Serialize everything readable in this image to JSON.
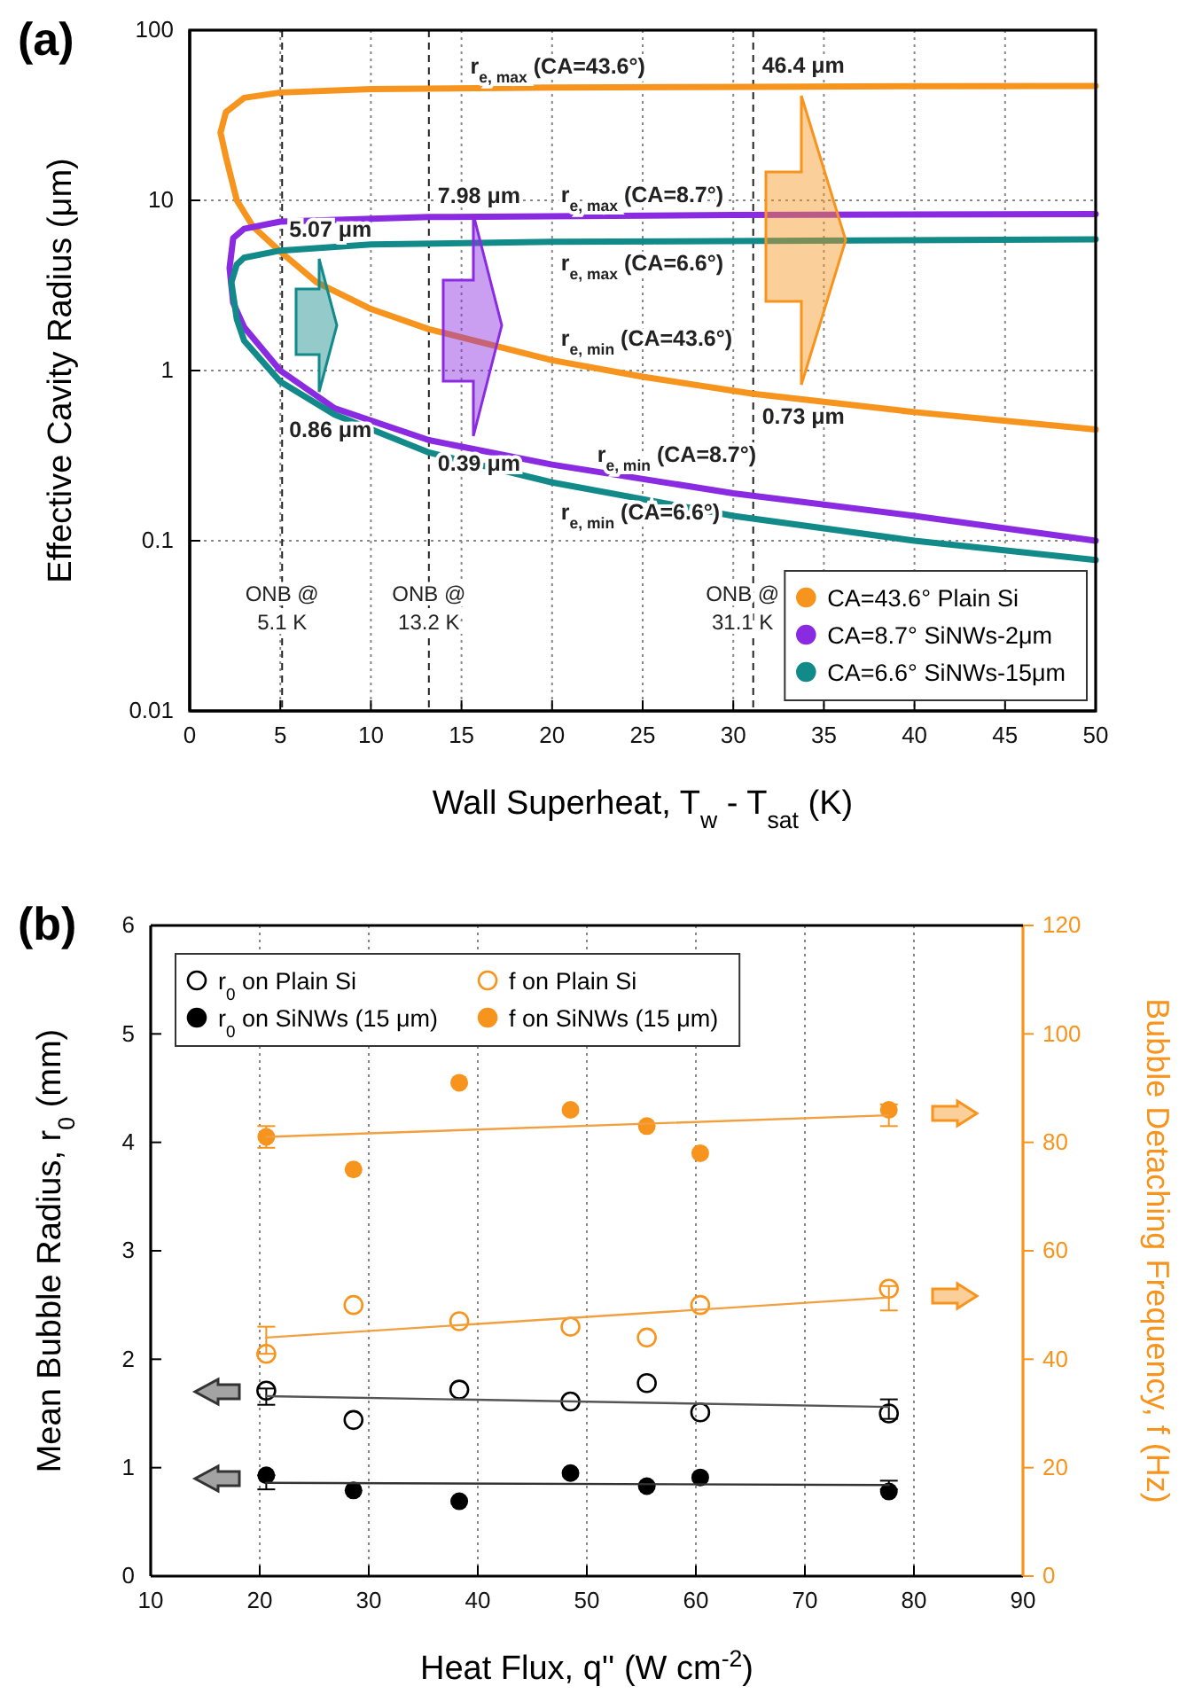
{
  "chart_data": [
    {
      "type": "line",
      "title": "(a)",
      "xlabel": "Wall Superheat, T$_{w}$ - T$_{sat}$ (K)",
      "ylabel": "Effective Cavity Radius (μm)",
      "log": "y",
      "xlim": [
        0,
        50
      ],
      "xticks": [
        0,
        5,
        10,
        15,
        20,
        25,
        30,
        35,
        40,
        45,
        50
      ],
      "ylim": [
        0.01,
        100
      ],
      "yticks": [
        0.01,
        0.1,
        1,
        10,
        100
      ],
      "grid": true,
      "legend": "bottom right",
      "marker": "none",
      "line_style": "solid",
      "series": [
        {
          "name": "CA=43.6° Plain Si",
          "color": "#f7941d",
          "x": [
            50,
            40,
            31.1,
            20,
            10,
            5,
            3,
            2,
            1.7,
            2,
            2.6,
            3.5,
            5,
            7,
            10,
            13.2,
            20,
            25,
            31.1,
            40,
            50
          ],
          "values": [
            47,
            46.8,
            46.4,
            46,
            45,
            43,
            40,
            33,
            25,
            18,
            10,
            7,
            5,
            3.3,
            2.3,
            1.75,
            1.15,
            0.92,
            0.73,
            0.57,
            0.45
          ]
        },
        {
          "name": "CA=8.7° SiNWs-2μm",
          "color": "#8a2be2",
          "x": [
            50,
            30,
            13.2,
            5,
            3,
            2.4,
            2.2,
            2.4,
            3,
            5,
            8,
            13.2,
            20,
            30,
            40,
            50
          ],
          "values": [
            8.3,
            8.2,
            7.98,
            7.5,
            6.8,
            6,
            4,
            2.5,
            1.8,
            1.0,
            0.6,
            0.39,
            0.28,
            0.19,
            0.14,
            0.1
          ]
        },
        {
          "name": "CA=6.6° SiNWs-15μm",
          "color": "#138a8a",
          "x": [
            50,
            20,
            10,
            5,
            3,
            2.6,
            2.3,
            2.6,
            3,
            5,
            8,
            13.2,
            20,
            30,
            40,
            50
          ],
          "values": [
            5.9,
            5.7,
            5.5,
            5.07,
            4.6,
            4.2,
            3.3,
            2,
            1.5,
            0.86,
            0.55,
            0.33,
            0.22,
            0.14,
            0.1,
            0.077
          ]
        }
      ],
      "ref_lines": [
        {
          "axis": "x",
          "value": 5.1,
          "label": "ONB @\n5.1 K",
          "line_style": "dashed",
          "color": "#222222"
        },
        {
          "axis": "x",
          "value": 13.2,
          "label": "ONB @\n13.2 K",
          "line_style": "dashed",
          "color": "#222222"
        },
        {
          "axis": "x",
          "value": 31.1,
          "label": "ONB @\n31.1 K",
          "line_style": "dashed",
          "color": "#222222"
        }
      ],
      "annotations": [
        {
          "text": "r$_{e, max}$ (CA=43.6°)",
          "x": 15,
          "y": 46
        },
        {
          "text": "r$_{e, max}$ (CA=8.7°)",
          "x": 20,
          "y": 8.1
        },
        {
          "text": "r$_{e, max}$ (CA=6.6°)",
          "x": 20,
          "y": 5.8
        },
        {
          "text": "r$_{e, min}$ (CA=43.6°)",
          "x": 20,
          "y": 1.15
        },
        {
          "text": "r$_{e, min}$ (CA=8.7°)",
          "x": 22,
          "y": 0.24
        },
        {
          "text": "r$_{e, min}$ (CA=6.6°)",
          "x": 20,
          "y": 0.2
        },
        {
          "text": "46.4 μm",
          "x": 31.1,
          "y": 46.4
        },
        {
          "text": "7.98 μm",
          "x": 13.2,
          "y": 7.98
        },
        {
          "text": "5.07 μm",
          "x": 5,
          "y": 5.07
        },
        {
          "text": "0.86 μm",
          "x": 5,
          "y": 0.86
        },
        {
          "text": "0.39 μm",
          "x": 13.2,
          "y": 0.39
        },
        {
          "text": "0.73 μm",
          "x": 31.1,
          "y": 0.73
        }
      ]
    },
    {
      "type": "scatter",
      "title": "(b)",
      "xlabel": "Heat Flux, q'' (W cm$^{-2}$)",
      "ylabel": "Mean Bubble Radius, r$_{0}$ (mm)",
      "y2label": "Bubble Detaching Frequency, f (Hz)",
      "xlim": [
        10,
        90
      ],
      "xticks": [
        10,
        20,
        30,
        40,
        50,
        60,
        70,
        80,
        90
      ],
      "ylim": [
        0,
        6
      ],
      "yticks": [
        0,
        1,
        2,
        3,
        4,
        5,
        6
      ],
      "y2lim": [
        0,
        120
      ],
      "y2ticks": [
        0,
        20,
        40,
        60,
        80,
        100,
        120
      ],
      "grid": "x",
      "legend": "top left",
      "series": [
        {
          "name": "r$_{0}$ on Plain Si",
          "color": "#000000",
          "marker": "circle-open",
          "x": [
            20.6,
            28.6,
            38.3,
            48.5,
            55.5,
            60.4,
            77.7
          ],
          "values": [
            1.71,
            1.44,
            1.72,
            1.61,
            1.78,
            1.51,
            1.5
          ],
          "errors": [
            [
              1.58,
              1.73
            ],
            null,
            null,
            null,
            null,
            null,
            [
              1.45,
              1.63
            ]
          ]
        },
        {
          "name": "r$_{0}$ on SiNWs (15 μm)",
          "color": "#000000",
          "marker": "circle",
          "x": [
            20.6,
            28.6,
            38.3,
            48.5,
            55.5,
            60.4,
            77.7
          ],
          "values": [
            0.93,
            0.79,
            0.69,
            0.95,
            0.83,
            0.91,
            0.78
          ],
          "errors": [
            [
              0.8,
              0.93
            ],
            null,
            null,
            null,
            null,
            null,
            [
              0.8,
              0.88
            ]
          ]
        },
        {
          "name": "f on Plain Si",
          "color": "#f7941d",
          "axis": "y2",
          "marker": "circle-open",
          "x": [
            20.6,
            28.6,
            38.3,
            48.5,
            55.5,
            60.4,
            77.7
          ],
          "values": [
            41,
            50,
            47,
            46,
            44,
            50,
            53
          ],
          "errors": [
            [
              41,
              46
            ],
            null,
            null,
            null,
            null,
            null,
            [
              49,
              53.5
            ]
          ]
        },
        {
          "name": "f on SiNWs (15 μm)",
          "color": "#f7941d",
          "axis": "y2",
          "marker": "circle",
          "x": [
            20.6,
            28.6,
            38.3,
            48.5,
            55.5,
            60.4,
            77.7
          ],
          "values": [
            81,
            75,
            91,
            86,
            83,
            78,
            86
          ],
          "errors": [
            [
              79,
              83
            ],
            null,
            null,
            null,
            null,
            null,
            [
              83,
              87
            ]
          ]
        },
        {
          "type": "line",
          "color": "#555555",
          "x": [
            20.6,
            77.7
          ],
          "values": [
            1.66,
            1.56
          ]
        },
        {
          "type": "line",
          "color": "#333333",
          "x": [
            20.6,
            77.7
          ],
          "values": [
            0.86,
            0.84
          ]
        },
        {
          "type": "line",
          "color": "#f0a040",
          "axis": "y2",
          "x": [
            20.6,
            77.7
          ],
          "values": [
            44,
            51.4
          ]
        },
        {
          "type": "line",
          "color": "#f0a040",
          "axis": "y2",
          "x": [
            20.6,
            77.7
          ],
          "values": [
            81,
            85
          ]
        }
      ]
    }
  ]
}
